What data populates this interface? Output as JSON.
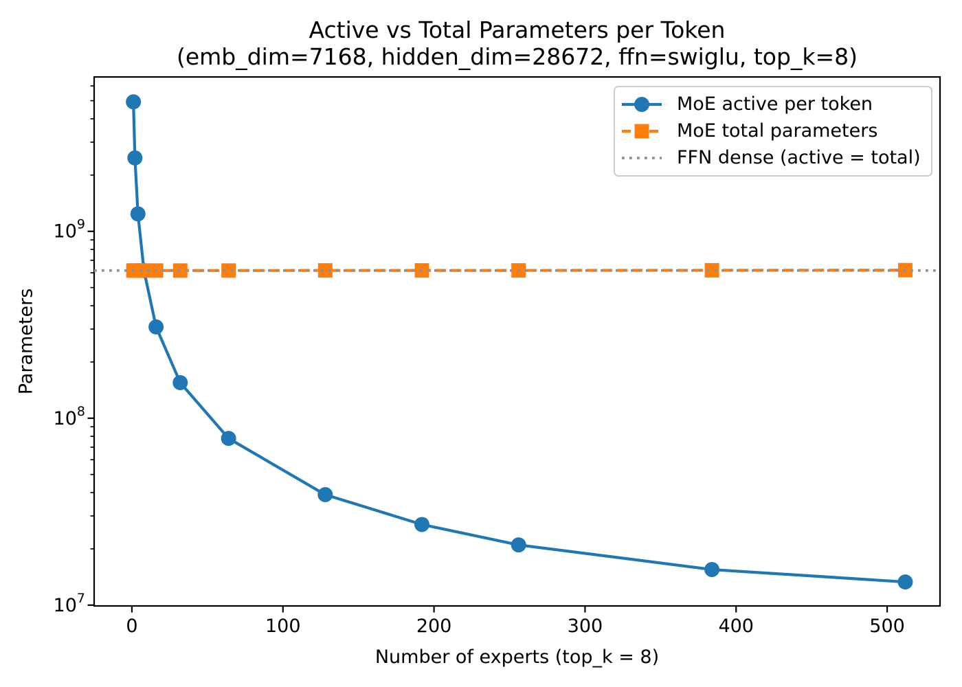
{
  "chart": {
    "title_line1": "Active vs Total Parameters per Token",
    "title_line2": "(emb_dim=7168, hidden_dim=28672, ffn=swiglu, top_k=8)",
    "xlabel": "Number of experts (top_k = 8)",
    "ylabel": "Parameters"
  },
  "chart_data": {
    "type": "line",
    "title": "Active vs Total Parameters per Token (emb_dim=7168, hidden_dim=28672, ffn=swiglu, top_k=8)",
    "xlabel": "Number of experts (top_k = 8)",
    "ylabel": "Parameters",
    "x_scale": "linear",
    "y_scale": "log",
    "xlim": [
      -25,
      535
    ],
    "ylim": [
      9900000.0,
      6700000000.0
    ],
    "grid": false,
    "legend_position": "upper right",
    "x": [
      1,
      2,
      4,
      8,
      16,
      32,
      64,
      128,
      192,
      256,
      384,
      512
    ],
    "x_ticks": [
      0,
      100,
      200,
      300,
      400,
      500
    ],
    "y_ticks": [
      {
        "base": "10",
        "exponent": "7",
        "value": 10000000.0
      },
      {
        "base": "10",
        "exponent": "8",
        "value": 100000000.0
      },
      {
        "base": "10",
        "exponent": "9",
        "value": 1000000000.0
      }
    ],
    "series": [
      {
        "name": "MoE active per token",
        "color": "#1f77b4",
        "line_style": "solid",
        "marker": "circle",
        "values": [
          4930000000.0,
          2470000000.0,
          1240000000.0,
          617000000.0,
          308000000.0,
          155000000.0,
          78000000.0,
          39000000.0,
          27000000.0,
          21000000.0,
          15500000.0,
          13300000.0
        ]
      },
      {
        "name": "MoE total parameters",
        "color": "#ff7f0e",
        "line_style": "dashed",
        "marker": "square",
        "values": [
          617000000.0,
          617000000.0,
          617000000.0,
          617000000.0,
          617000000.0,
          617000000.0,
          617000000.0,
          618000000.0,
          618000000.0,
          618000000.0,
          619000000.0,
          620000000.0
        ]
      },
      {
        "name": "FFN dense (active = total)",
        "color": "#909090",
        "line_style": "dotted",
        "marker": "none",
        "span": "full",
        "value": 617000000.0
      }
    ]
  }
}
